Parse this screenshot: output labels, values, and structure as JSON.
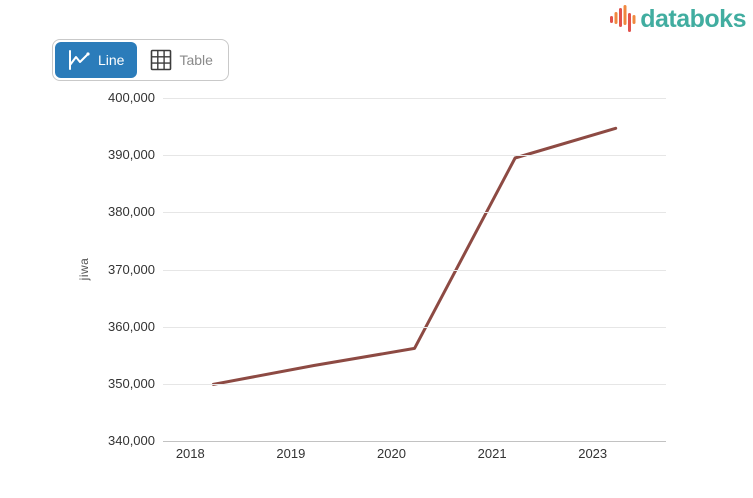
{
  "header": {
    "logo_text": "databoks"
  },
  "toolbar": {
    "buttons": [
      {
        "label": "Line",
        "icon": "line-chart-icon",
        "active": true
      },
      {
        "label": "Table",
        "icon": "table-icon",
        "active": false
      }
    ]
  },
  "colors": {
    "accent_blue": "#2b7cba",
    "logo_teal": "#41ada0",
    "logo_red": "#e2514c",
    "logo_orange": "#f0883f",
    "line_color": "#8d4a43",
    "gridline": "#e6e6e6",
    "axis_line": "#c2c2c2"
  },
  "chart_data": {
    "type": "line",
    "categories": [
      "2018",
      "2019",
      "2020",
      "2021",
      "2023"
    ],
    "values": [
      349900,
      353200,
      356200,
      389500,
      394700
    ],
    "title": "",
    "xlabel": "",
    "ylabel": "jiwa",
    "ylim": [
      340000,
      400000
    ],
    "ytick_step": 10000,
    "yticks": [
      "400,000",
      "390,000",
      "380,000",
      "370,000",
      "360,000",
      "350,000",
      "340,000"
    ],
    "grid": true,
    "legend": false,
    "line_color": "#8d4a43"
  }
}
